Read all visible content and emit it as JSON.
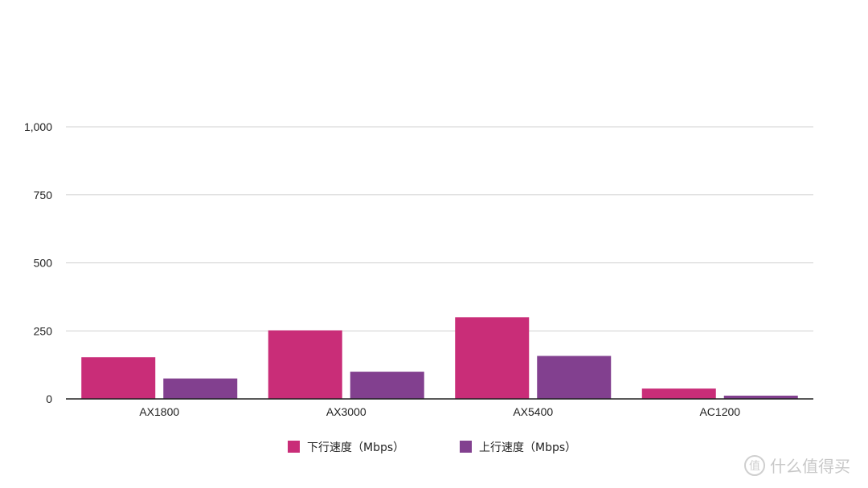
{
  "chart_data": {
    "type": "bar",
    "categories": [
      "AX1800",
      "AX3000",
      "AX5400",
      "AC1200"
    ],
    "series": [
      {
        "name": "下行速度（Mbps）",
        "color": "#c92d78",
        "values": [
          153,
          252,
          300,
          38
        ]
      },
      {
        "name": "上行速度（Mbps）",
        "color": "#82408f",
        "values": [
          75,
          100,
          158,
          12
        ]
      }
    ],
    "ylim": [
      0,
      1000
    ],
    "yticks": [
      0,
      250,
      500,
      750,
      1000
    ],
    "ytick_labels": [
      "0",
      "250",
      "500",
      "750",
      "1,000"
    ],
    "grid": true,
    "legend_position": "bottom-center"
  },
  "watermark": {
    "icon": "zhi-icon",
    "icon_text": "值",
    "text": "什么值得买"
  }
}
